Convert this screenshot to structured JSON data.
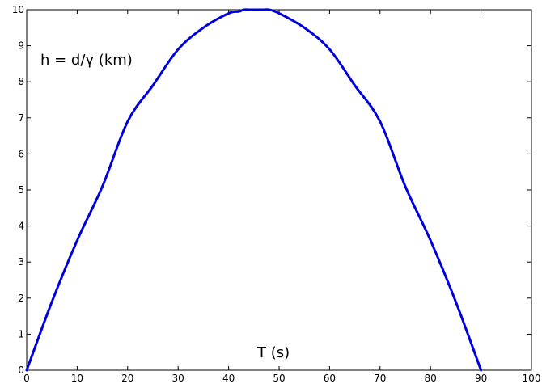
{
  "chart_data": {
    "type": "line",
    "xlabel": "T (s)",
    "ylabel": "h = d/γ (km)",
    "xlim": [
      0,
      100
    ],
    "ylim": [
      0,
      10
    ],
    "x_ticks": [
      "0",
      "10",
      "20",
      "30",
      "40",
      "50",
      "60",
      "70",
      "80",
      "90",
      "100"
    ],
    "y_ticks": [
      "0",
      "1",
      "2",
      "3",
      "4",
      "5",
      "6",
      "7",
      "8",
      "9",
      "10"
    ],
    "grid": false,
    "legend": "none",
    "series": [
      {
        "color": "#0000dd",
        "x": [
          0,
          5,
          10,
          15,
          20,
          25,
          30,
          35,
          40,
          42,
          43,
          44,
          45,
          46,
          47,
          48,
          50,
          55,
          60,
          65,
          70,
          75,
          80,
          85,
          90
        ],
        "y": [
          0,
          1.9,
          3.6,
          5.1,
          6.9,
          7.9,
          8.9,
          9.5,
          9.9,
          9.95,
          10,
          10,
          10,
          10,
          10,
          10,
          9.9,
          9.5,
          8.9,
          7.9,
          6.9,
          5.1,
          3.6,
          1.9,
          0
        ]
      }
    ]
  }
}
